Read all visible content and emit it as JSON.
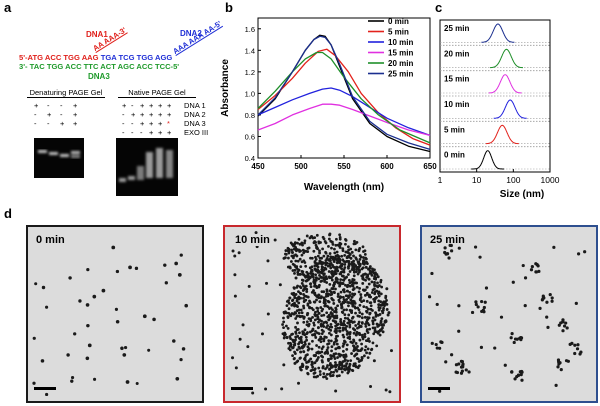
{
  "panels": {
    "a": "a",
    "b": "b",
    "c": "c",
    "d": "d"
  },
  "panel_a": {
    "dna1": "DNA1",
    "dna2": "DNA2",
    "tail_red": "AA AAA-3'",
    "tail_blue": "AAA AAA AA-5'",
    "seq_top_red": "5'-ATG ACC TGG AAG",
    "seq_top_blue": " TGA TCG TGG AGG",
    "seq_bottom": "3'- TAC TGG ACC TTC ACT AGC ACC TCC-5'",
    "dna3": "DNA3",
    "gel_denat_title": "Denaturing PAGE Gel",
    "gel_native_title": "Native PAGE Gel",
    "denat_rows": [
      [
        "+",
        "-",
        "-",
        "+"
      ],
      [
        "-",
        "+",
        "-",
        "+"
      ],
      [
        "-",
        "-",
        "+",
        "+"
      ]
    ],
    "native_rows": [
      {
        "vals": [
          "+",
          "-",
          "+",
          "+",
          "+",
          "+"
        ],
        "label": "DNA 1"
      },
      {
        "vals": [
          "-",
          "+",
          "+",
          "+",
          "+",
          "+"
        ],
        "label": "DNA 2"
      },
      {
        "vals": [
          "-",
          "-",
          "+",
          "+",
          "+",
          "*"
        ],
        "label": "DNA 3"
      },
      {
        "vals": [
          "-",
          "-",
          "-",
          "+",
          "+",
          "+"
        ],
        "label": "EXO III"
      }
    ]
  },
  "chart_data": [
    {
      "type": "line",
      "xlabel": "Wavelength (nm)",
      "ylabel": "Absorbance",
      "xlim": [
        450,
        650
      ],
      "ylim": [
        0.4,
        1.7
      ],
      "xticks": [
        450,
        500,
        550,
        600,
        650
      ],
      "yticks": [
        0.4,
        0.6,
        0.8,
        1.0,
        1.2,
        1.4,
        1.6
      ],
      "legend": "top-right",
      "series": [
        {
          "name": "0 min",
          "color": "#000000",
          "x": [
            450,
            470,
            490,
            505,
            515,
            522,
            528,
            535,
            545,
            560,
            580,
            600,
            625,
            650
          ],
          "y": [
            0.79,
            0.95,
            1.2,
            1.4,
            1.5,
            1.54,
            1.53,
            1.45,
            1.25,
            0.95,
            0.72,
            0.6,
            0.51,
            0.46
          ]
        },
        {
          "name": "5 min",
          "color": "#e3221c",
          "x": [
            450,
            470,
            490,
            505,
            520,
            530,
            540,
            555,
            570,
            590,
            610,
            630,
            650
          ],
          "y": [
            0.85,
            0.98,
            1.14,
            1.28,
            1.39,
            1.41,
            1.35,
            1.2,
            1.0,
            0.82,
            0.68,
            0.58,
            0.52
          ]
        },
        {
          "name": "10 min",
          "color": "#2222dd",
          "x": [
            450,
            470,
            490,
            510,
            525,
            535,
            545,
            560,
            580,
            600,
            625,
            650
          ],
          "y": [
            0.8,
            0.87,
            0.94,
            1.0,
            1.04,
            1.05,
            1.03,
            0.97,
            0.87,
            0.77,
            0.68,
            0.61
          ]
        },
        {
          "name": "15 min",
          "color": "#e030e0",
          "x": [
            450,
            470,
            490,
            510,
            525,
            535,
            545,
            560,
            580,
            600,
            625,
            650
          ],
          "y": [
            0.66,
            0.72,
            0.8,
            0.86,
            0.9,
            0.9,
            0.89,
            0.85,
            0.79,
            0.73,
            0.66,
            0.61
          ]
        },
        {
          "name": "20 min",
          "color": "#1f8f2a",
          "x": [
            450,
            470,
            490,
            505,
            518,
            525,
            535,
            550,
            570,
            590,
            615,
            650
          ],
          "y": [
            0.86,
            1.02,
            1.2,
            1.32,
            1.38,
            1.38,
            1.32,
            1.15,
            0.95,
            0.8,
            0.66,
            0.54
          ]
        },
        {
          "name": "25 min",
          "color": "#1b2f8f",
          "x": [
            450,
            470,
            490,
            505,
            515,
            522,
            528,
            535,
            545,
            560,
            580,
            600,
            625,
            650
          ],
          "y": [
            0.8,
            0.96,
            1.2,
            1.4,
            1.5,
            1.53,
            1.52,
            1.45,
            1.27,
            0.97,
            0.74,
            0.62,
            0.54,
            0.48
          ]
        }
      ]
    },
    {
      "type": "area",
      "xlabel": "Size (nm)",
      "xscale": "log",
      "xlim": [
        1,
        1000
      ],
      "xticks": [
        1,
        10,
        100,
        1000
      ],
      "series": [
        {
          "name": "25 min",
          "color": "#1b2f8f",
          "center": 38,
          "width": 0.13
        },
        {
          "name": "20 min",
          "color": "#1f8f2a",
          "center": 65,
          "width": 0.13
        },
        {
          "name": "15 min",
          "color": "#e030e0",
          "center": 60,
          "width": 0.13
        },
        {
          "name": "10 min",
          "color": "#2222dd",
          "center": 82,
          "width": 0.13
        },
        {
          "name": "5 min",
          "color": "#e3221c",
          "center": 50,
          "width": 0.13
        },
        {
          "name": "0 min",
          "color": "#000000",
          "center": 20,
          "width": 0.11
        }
      ]
    }
  ],
  "panel_d": {
    "images": [
      {
        "label": "0 min",
        "border": "#1a1a1a"
      },
      {
        "label": "10 min",
        "border": "#c8282d"
      },
      {
        "label": "25 min",
        "border": "#2e4f8f"
      }
    ]
  }
}
